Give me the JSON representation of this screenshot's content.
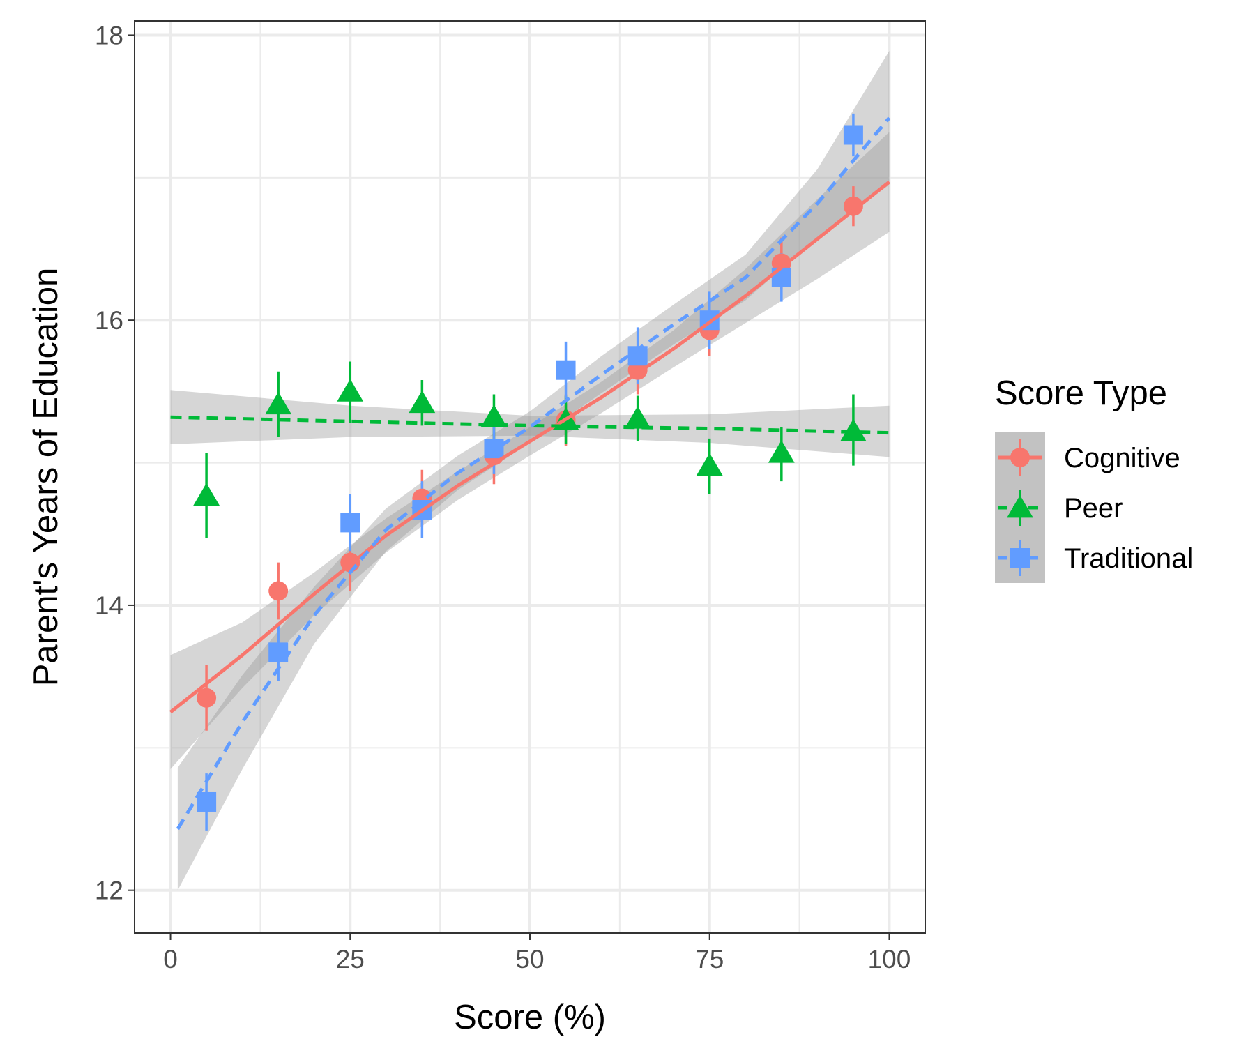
{
  "chart_data": {
    "type": "scatter",
    "xlabel": "Score (%)",
    "ylabel": "Parent's Years of Education",
    "xlim": [
      -5,
      105
    ],
    "ylim": [
      11.7,
      18.1
    ],
    "x_ticks": [
      0,
      25,
      50,
      75,
      100
    ],
    "x_tick_labels": [
      "0",
      "25",
      "50",
      "75",
      "100"
    ],
    "y_ticks": [
      12,
      14,
      16,
      18
    ],
    "y_tick_labels": [
      "12",
      "14",
      "16",
      "18"
    ],
    "x_minor_grid": [
      12.5,
      37.5,
      62.5,
      87.5
    ],
    "y_minor_grid": [
      13,
      15,
      17
    ],
    "grid": true,
    "legend": {
      "title": "Score Type",
      "position": "right"
    },
    "series": [
      {
        "name": "Cognitive",
        "color": "#F8766D",
        "marker": "circle",
        "line_style": "solid",
        "x": [
          5,
          15,
          25,
          35,
          45,
          55,
          65,
          75,
          85,
          95
        ],
        "y": [
          13.35,
          14.1,
          14.3,
          14.75,
          15.05,
          15.3,
          15.65,
          15.93,
          16.4,
          16.8
        ],
        "err_low": [
          13.12,
          13.9,
          14.1,
          14.55,
          14.85,
          15.12,
          15.48,
          15.75,
          16.22,
          16.66
        ],
        "err_high": [
          13.58,
          14.3,
          14.5,
          14.95,
          15.25,
          15.48,
          15.82,
          16.11,
          16.58,
          16.94
        ],
        "fit_x": [
          0,
          10,
          20,
          30,
          40,
          50,
          60,
          70,
          80,
          90,
          100
        ],
        "fit_y": [
          13.25,
          13.65,
          14.08,
          14.49,
          14.84,
          15.15,
          15.46,
          15.8,
          16.17,
          16.57,
          16.97
        ],
        "ci_low": [
          12.85,
          13.42,
          13.93,
          14.37,
          14.74,
          15.05,
          15.35,
          15.67,
          15.98,
          16.29,
          16.62
        ],
        "ci_high": [
          13.65,
          13.88,
          14.23,
          14.61,
          14.94,
          15.25,
          15.57,
          15.93,
          16.36,
          16.85,
          17.32
        ]
      },
      {
        "name": "Peer",
        "color": "#00BA38",
        "marker": "triangle",
        "line_style": "dashed",
        "x": [
          5,
          15,
          25,
          35,
          45,
          55,
          65,
          75,
          85,
          95
        ],
        "y": [
          14.77,
          15.41,
          15.5,
          15.42,
          15.32,
          15.3,
          15.31,
          14.98,
          15.07,
          15.22
        ],
        "err_low": [
          14.47,
          15.18,
          15.28,
          15.26,
          15.16,
          15.13,
          15.15,
          14.78,
          14.87,
          14.98
        ],
        "err_high": [
          15.07,
          15.64,
          15.71,
          15.58,
          15.48,
          15.47,
          15.47,
          15.17,
          15.25,
          15.48
        ],
        "fit_x": [
          0,
          25,
          50,
          75,
          100
        ],
        "fit_y": [
          15.32,
          15.29,
          15.26,
          15.24,
          15.21
        ],
        "ci_low": [
          15.13,
          15.18,
          15.19,
          15.14,
          15.04
        ],
        "ci_high": [
          15.51,
          15.4,
          15.33,
          15.34,
          15.4
        ]
      },
      {
        "name": "Traditional",
        "color": "#619CFF",
        "marker": "square",
        "line_style": "dashed",
        "x": [
          5,
          15,
          25,
          35,
          45,
          55,
          65,
          75,
          85,
          95
        ],
        "y": [
          12.62,
          13.67,
          14.58,
          14.67,
          15.1,
          15.65,
          15.75,
          16.0,
          16.3,
          17.3
        ],
        "err_low": [
          12.42,
          13.47,
          14.38,
          14.47,
          14.92,
          15.45,
          15.55,
          15.8,
          16.13,
          17.15
        ],
        "err_high": [
          12.82,
          13.87,
          14.78,
          14.87,
          15.28,
          15.85,
          15.95,
          16.2,
          16.47,
          17.45
        ],
        "fit_x": [
          1,
          10,
          20,
          30,
          40,
          50,
          60,
          70,
          80,
          90,
          100
        ],
        "fit_y": [
          12.43,
          13.18,
          13.93,
          14.53,
          14.93,
          15.25,
          15.62,
          15.97,
          16.3,
          16.82,
          17.42
        ],
        "ci_low": [
          12.0,
          12.85,
          13.73,
          14.38,
          14.81,
          15.14,
          15.49,
          15.83,
          16.14,
          16.58,
          16.95
        ],
        "ci_high": [
          12.86,
          13.51,
          14.13,
          14.68,
          15.05,
          15.36,
          15.75,
          16.11,
          16.46,
          17.06,
          17.89
        ]
      }
    ]
  }
}
